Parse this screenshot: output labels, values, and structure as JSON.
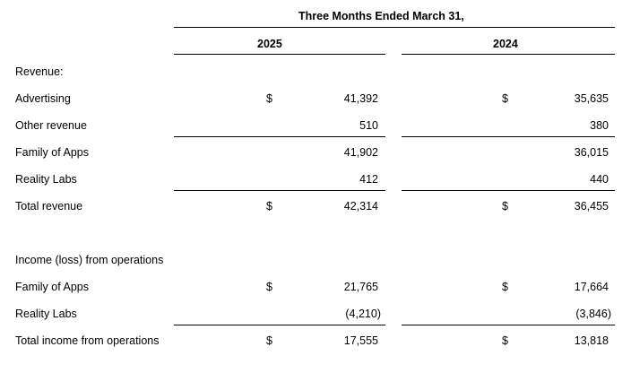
{
  "header": {
    "period_title": "Three Months Ended March 31,",
    "col_a": "2025",
    "col_b": "2024"
  },
  "sections": {
    "revenue_heading": "Revenue:",
    "income_heading": "Income (loss) from operations"
  },
  "rows": {
    "advertising": {
      "label": "Advertising",
      "dollar_a": "$",
      "a": "41,392",
      "dollar_b": "$",
      "b": "35,635"
    },
    "other_revenue": {
      "label": "Other revenue",
      "a": "510",
      "b": "380"
    },
    "family_of_apps_rev": {
      "label": "Family of Apps",
      "a": "41,902",
      "b": "36,015"
    },
    "reality_labs_rev": {
      "label": "Reality Labs",
      "a": "412",
      "b": "440"
    },
    "total_revenue": {
      "label": "Total revenue",
      "dollar_a": "$",
      "a": "42,314",
      "dollar_b": "$",
      "b": "36,455"
    },
    "family_of_apps_inc": {
      "label": "Family of Apps",
      "dollar_a": "$",
      "a": "21,765",
      "dollar_b": "$",
      "b": "17,664"
    },
    "reality_labs_inc": {
      "label": "Reality Labs",
      "a": "(4,210)",
      "b": "(3,846)"
    },
    "total_income": {
      "label": "Total income from operations",
      "dollar_a": "$",
      "a": "17,555",
      "dollar_b": "$",
      "b": "13,818"
    }
  }
}
